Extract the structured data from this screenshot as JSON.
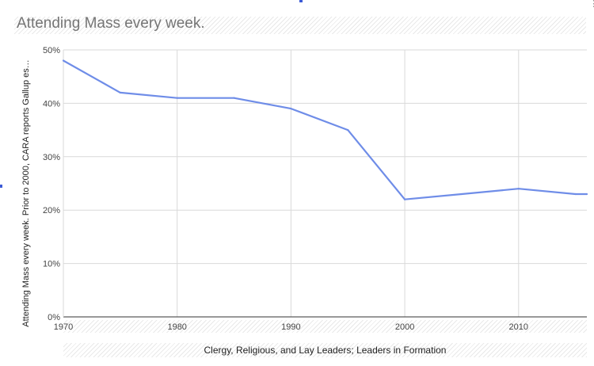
{
  "chart_data": {
    "type": "line",
    "title": "Attending Mass every week.",
    "xlabel": "Clergy, Religious, and Lay Leaders; Leaders in Formation",
    "ylabel": "Attending Mass every week. Prior to 2000, CARA reports Gallup es…",
    "x_ticks": [
      "1970",
      "1980",
      "1990",
      "2000",
      "2010"
    ],
    "y_ticks": [
      "0%",
      "10%",
      "20%",
      "30%",
      "40%",
      "50%"
    ],
    "xlim": [
      1970,
      2016
    ],
    "ylim": [
      0,
      50
    ],
    "grid": true,
    "line_color": "#6f8de8",
    "series": [
      {
        "x": [
          1970,
          1975,
          1980,
          1985,
          1990,
          1995,
          2000,
          2005,
          2010,
          2015,
          2016
        ],
        "values": [
          48,
          42,
          41,
          41,
          39,
          35,
          22,
          23,
          24,
          23,
          23
        ]
      }
    ]
  }
}
